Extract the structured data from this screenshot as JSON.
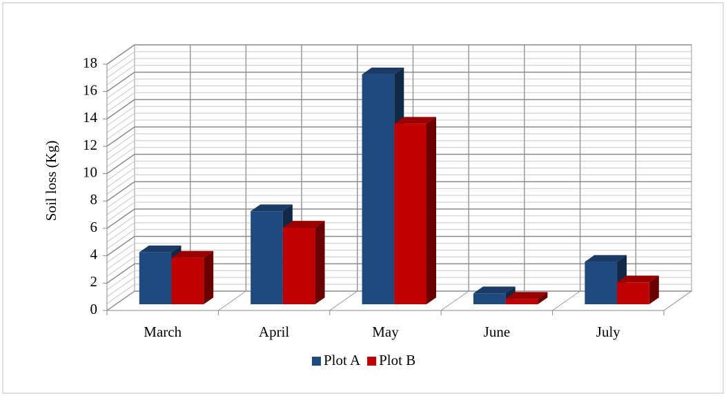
{
  "chart_data": {
    "type": "bar3d",
    "y_label": "Soil loss (Kg)",
    "categories": [
      "March",
      "April",
      "May",
      "June",
      "July"
    ],
    "series": [
      {
        "name": "Plot A",
        "color": "#1f4a80",
        "values": [
          3.8,
          6.8,
          16.8,
          0.8,
          3.1
        ]
      },
      {
        "name": "Plot B",
        "color": "#c00000",
        "values": [
          3.4,
          5.6,
          13.2,
          0.4,
          1.6
        ]
      }
    ],
    "ylim": [
      0,
      18
    ],
    "yticks": [
      0,
      2,
      4,
      6,
      8,
      10,
      12,
      14,
      16,
      18
    ],
    "grid": true,
    "legend": "bottom"
  }
}
